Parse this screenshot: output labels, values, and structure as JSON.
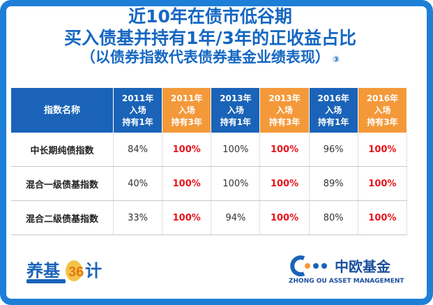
{
  "title": {
    "line1": "近10年在债市低谷期",
    "line2_a": "买入债基并持有1年/3年的",
    "line2_b": "正收益占比",
    "line3": "（以债券指数代表债券基金业绩表现）",
    "marker": "③"
  },
  "table": {
    "name_header": "指数名称",
    "columns": [
      {
        "year": "2011年",
        "enter": "入场",
        "hold": "持有1年",
        "type": "1y"
      },
      {
        "year": "2011年",
        "enter": "入场",
        "hold": "持有3年",
        "type": "3y"
      },
      {
        "year": "2013年",
        "enter": "入场",
        "hold": "持有1年",
        "type": "1y"
      },
      {
        "year": "2013年",
        "enter": "入场",
        "hold": "持有3年",
        "type": "3y"
      },
      {
        "year": "2016年",
        "enter": "入场",
        "hold": "持有1年",
        "type": "1y"
      },
      {
        "year": "2016年",
        "enter": "入场",
        "hold": "持有3年",
        "type": "3y"
      }
    ],
    "rows": [
      {
        "name": "中长期纯债指数",
        "values": [
          "84%",
          "100%",
          "100%",
          "100%",
          "96%",
          "100%"
        ]
      },
      {
        "name": "混合一级债基指数",
        "values": [
          "40%",
          "100%",
          "100%",
          "100%",
          "89%",
          "100%"
        ]
      },
      {
        "name": "混合二级债基指数",
        "values": [
          "33%",
          "100%",
          "94%",
          "100%",
          "80%",
          "100%"
        ]
      }
    ]
  },
  "logos": {
    "left": {
      "text_a": "养基",
      "text_num": "36",
      "text_b": "计"
    },
    "right": {
      "cn": "中欧基金",
      "en": "ZHONG OU ASSET MANAGEMENT"
    }
  },
  "colors": {
    "border": "#1e7fd6",
    "title": "#1567c2",
    "header_blue": "#1a63b8",
    "header_orange": "#f4993a",
    "highlight_red": "#e6141b"
  }
}
